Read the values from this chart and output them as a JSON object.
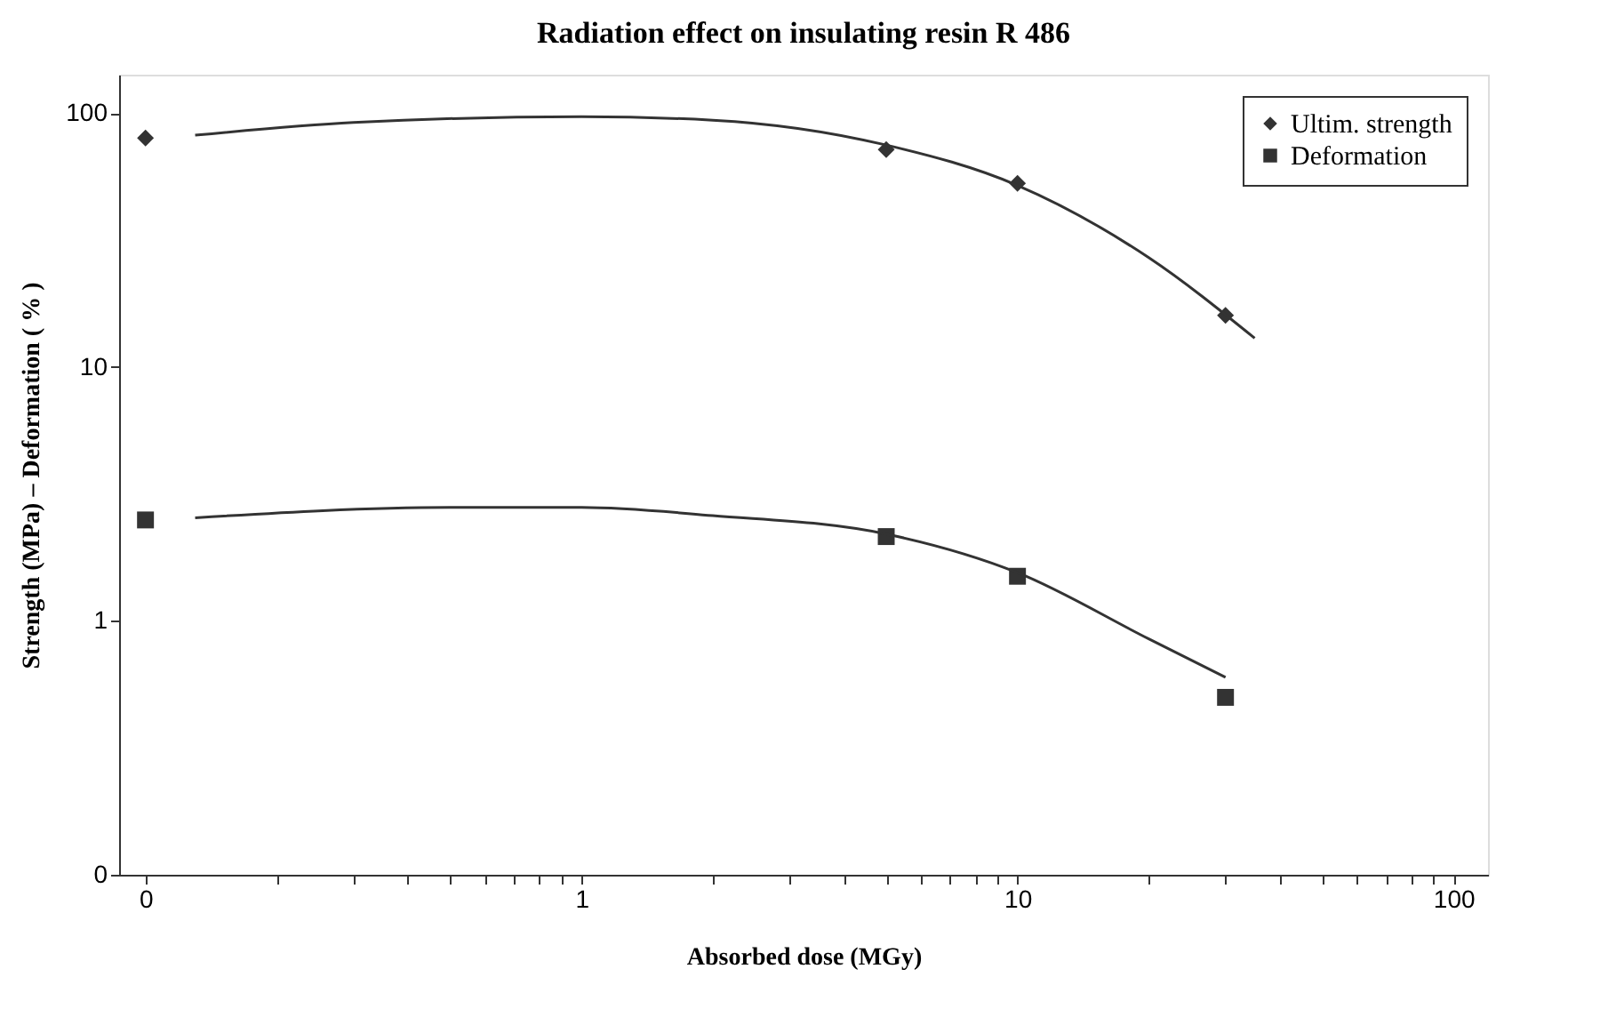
{
  "chart_data": {
    "type": "scatter",
    "title": "Radiation effect on insulating resin R 486",
    "xlabel": "Absorbed dose  (MGy)",
    "ylabel": "Strength (MPa) – Deformation ( % )",
    "log": "xy",
    "grid": false,
    "legend": "top right",
    "xlim": [
      0.087,
      120
    ],
    "ylim": [
      0.1,
      142
    ],
    "xticks": [
      {
        "value": 0.1,
        "label": "0"
      },
      {
        "value": 0.2,
        "label": null
      },
      {
        "value": 0.3,
        "label": null
      },
      {
        "value": 0.4,
        "label": null
      },
      {
        "value": 0.5,
        "label": null
      },
      {
        "value": 0.6,
        "label": null
      },
      {
        "value": 0.7,
        "label": null
      },
      {
        "value": 0.8,
        "label": null
      },
      {
        "value": 0.9,
        "label": null
      },
      1,
      {
        "value": 2,
        "label": null
      },
      {
        "value": 3,
        "label": null
      },
      {
        "value": 4,
        "label": null
      },
      {
        "value": 5,
        "label": null
      },
      {
        "value": 6,
        "label": null
      },
      {
        "value": 7,
        "label": null
      },
      {
        "value": 8,
        "label": null
      },
      {
        "value": 9,
        "label": null
      },
      10,
      {
        "value": 20,
        "label": null
      },
      {
        "value": 30,
        "label": null
      },
      {
        "value": 40,
        "label": null
      },
      {
        "value": 50,
        "label": null
      },
      {
        "value": 60,
        "label": null
      },
      {
        "value": 70,
        "label": null
      },
      {
        "value": 80,
        "label": null
      },
      {
        "value": 90,
        "label": null
      },
      100
    ],
    "yticks": [
      {
        "value": 0.1,
        "label": "0"
      },
      1,
      10,
      100
    ],
    "series": [
      {
        "name": "Ultim. strength",
        "marker": "diamond",
        "color": "#333333",
        "x": [
          0.1,
          5,
          10,
          30
        ],
        "values": [
          80,
          72,
          53,
          16
        ]
      },
      {
        "name": "Deformation",
        "marker": "square",
        "color": "#333333",
        "x": [
          0.1,
          5,
          10,
          30
        ],
        "values": [
          2.5,
          2.15,
          1.5,
          0.5
        ]
      },
      {
        "type": "line",
        "line_style": "solid",
        "color": "#333333",
        "x": [
          0.13,
          0.3,
          1,
          2,
          5,
          10,
          20,
          35
        ],
        "values": [
          82,
          92,
          97,
          94,
          75,
          52,
          27,
          13
        ]
      },
      {
        "type": "line",
        "line_style": "solid",
        "color": "#333333",
        "x": [
          0.13,
          0.5,
          1,
          2,
          5,
          10,
          20,
          30
        ],
        "values": [
          2.55,
          2.8,
          2.8,
          2.6,
          2.2,
          1.55,
          0.85,
          0.6
        ]
      }
    ]
  }
}
